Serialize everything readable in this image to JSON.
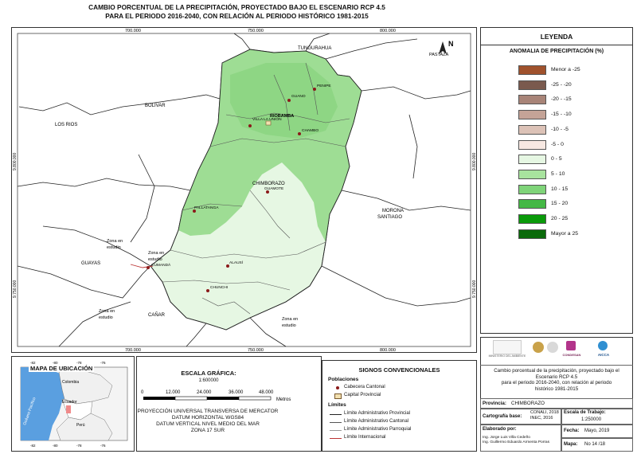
{
  "map": {
    "title_lines": [
      "CAMBIO PORCENTUAL DE LA PRECIPITACIÓN, PROYECTADO BAJO EL ESCENARIO RCP 4.5",
      "PARA EL PERIODO 2016-2040, CON RELACIÓN AL PERIODO HISTÓRICO 1981-2015"
    ],
    "grid_x_labels": [
      "700.000",
      "750.000",
      "800.000"
    ],
    "grid_y_labels": [
      "9.800.000",
      "9.750.000"
    ],
    "north_label": "N",
    "regions": [
      "TUNGURAHUA",
      "PASTAZA",
      "BOLIVAR",
      "LOS RIOS",
      "CHIMBORAZO",
      "MORONA",
      "SANTIAGO",
      "GUAYAS",
      "CAÑAR",
      "Zona en",
      "estudio"
    ],
    "cities": [
      {
        "name": "RIOBAMBA"
      },
      {
        "name": "GUANO"
      },
      {
        "name": "PENIPE"
      },
      {
        "name": "VILLA LA UNIÓN"
      },
      {
        "name": "CHAMBO"
      },
      {
        "name": "GUAMOTE"
      },
      {
        "name": "PALLATANGA"
      },
      {
        "name": "CUMANDÁ"
      },
      {
        "name": "ALAUSÍ"
      },
      {
        "name": "CHUNCHI"
      }
    ],
    "zone_labels": [
      "Zona en estudio",
      "Zona en estudio",
      "Zona en estudio",
      "Zona en estudio"
    ]
  },
  "legend": {
    "title": "LEYENDA",
    "subtitle": "ANOMALIA DE PRECIPITACIÓN (%)",
    "classes": [
      {
        "label": "Menor a -25",
        "color": "#a0522d"
      },
      {
        "label": "-25 - -20",
        "color": "#7a5a4e"
      },
      {
        "label": "-20 - -15",
        "color": "#a88478"
      },
      {
        "label": "-15 - -10",
        "color": "#c4a397"
      },
      {
        "label": "-10 - -5",
        "color": "#dcc2b7"
      },
      {
        "label": "-5 - 0",
        "color": "#f7e8e2"
      },
      {
        "label": "0 - 5",
        "color": "#e6f7e3"
      },
      {
        "label": "5 - 10",
        "color": "#a8e39e"
      },
      {
        "label": "10 - 15",
        "color": "#7fd479"
      },
      {
        "label": "15 - 20",
        "color": "#44b845"
      },
      {
        "label": "20 - 25",
        "color": "#0a9a0a"
      },
      {
        "label": "Mayor a 25",
        "color": "#0a6a0a"
      }
    ]
  },
  "location_map": {
    "title": "MAPA DE UBICACIÓN",
    "top_ticks": [
      "-82",
      "-80",
      "-78",
      "-76"
    ],
    "bottom_ticks": [
      "-82",
      "-80",
      "-78",
      "-76"
    ],
    "labels": [
      "Colombia",
      "Ecuador",
      "Perú",
      "Océano Pacífico"
    ]
  },
  "scale": {
    "title": "ESCALA GRÁFICA:",
    "ratio": "1:600000",
    "ticks": [
      "0",
      "12.000",
      "24.000",
      "36.000",
      "48.000"
    ],
    "unit": "Metros",
    "projection_lines": [
      "PROYECCIÓN UNIVERSAL TRANSVERSA DE MERCATOR",
      "DATUM HORIZONTAL WGS84",
      "DATUM VERTICAL NIVEL MEDIO DEL MAR",
      "ZONA 17 SUR"
    ]
  },
  "signs": {
    "title": "SIGNOS CONVENCIONALES",
    "poblaciones": "Poblaciones",
    "cabecera": "Cabecera Cantonal",
    "capital": "Capital Provincial",
    "limites": "Límites",
    "lim_items": [
      "Límite Administrativo Provincial",
      "Límite Administrativo Cantonal",
      "Límite Administrativo Parroquial",
      "Límite Internacional"
    ]
  },
  "info": {
    "logos": [
      "MINISTERIO DEL AMBIENTE",
      "CONDESAN",
      "AICCA"
    ],
    "description_lines": [
      "Cambio porcentual de la precipitación, proyectado bajo el",
      "Escenario RCP 4.5",
      "para el periodo 2016-2040, con relación al periodo",
      "histórico 1981-2015"
    ],
    "provincia_label": "Provincia:",
    "provincia_value": "CHIMBORAZO",
    "cartografia_label": "Cartografía base:",
    "cartografia_value_lines": [
      "CONALI, 2018",
      "INEC, 2016"
    ],
    "escala_label": "Escala de Trabajo:",
    "escala_value": "1:250000",
    "elaborado_label": "Elaborado por:",
    "elaborado_lines": [
      "Ing. Jorge Luis Villa Cedeño",
      "Ing. Guillermo Eduardo Armenta Porras"
    ],
    "fecha_label": "Fecha:",
    "fecha_value": "Mayo, 2019",
    "mapa_label": "Mapa:",
    "mapa_value": "No 14 /18"
  }
}
